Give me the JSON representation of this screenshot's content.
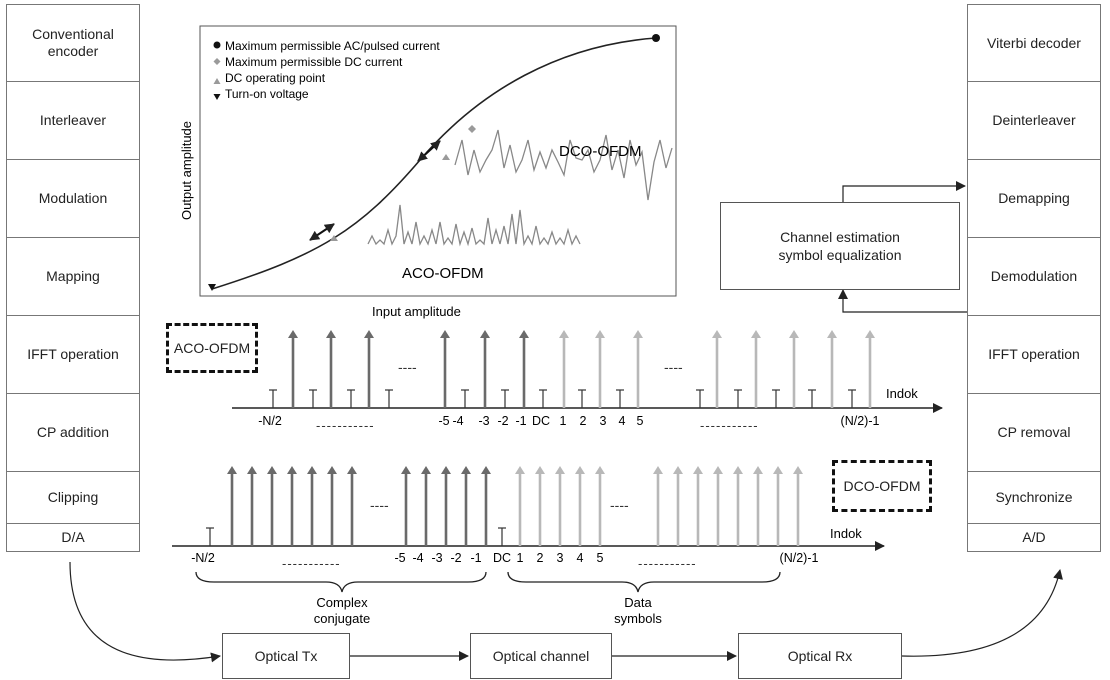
{
  "tx_chain": [
    "Conventional encoder",
    "Interleaver",
    "Modulation",
    "Mapping",
    "IFFT operation",
    "CP addition",
    "Clipping",
    "D/A"
  ],
  "rx_chain": [
    "Viterbi decoder",
    "Deinterleaver",
    "Demapping",
    "Demodulation",
    "IFFT operation",
    "CP removal",
    "Synchronize",
    "A/D"
  ],
  "channel_box": "Channel estimation\nsymbol equalization",
  "optical": {
    "tx": "Optical Tx",
    "channel": "Optical channel",
    "rx": "Optical Rx"
  },
  "inset": {
    "legend": [
      {
        "marker": "circle",
        "label": "Maximum permissible AC/pulsed current",
        "color": "#111111"
      },
      {
        "marker": "diamond",
        "label": "Maximum permissible DC current",
        "color": "#9a9a9a"
      },
      {
        "marker": "triangle-up",
        "label": "DC operating point",
        "color": "#9a9a9a"
      },
      {
        "marker": "triangle-down",
        "label": "Turn-on voltage",
        "color": "#111111"
      }
    ],
    "xlabel": "Input amplitude",
    "ylabel": "Output amplitude",
    "dco_label": "DCO-OFDM",
    "aco_label": "ACO-OFDM"
  },
  "aco": {
    "tag": "ACO-OFDM",
    "axis_label": "Indok",
    "ticks": [
      "-N/2",
      "-5",
      "-4",
      "-3",
      "-2",
      "-1",
      "DC",
      "1",
      "2",
      "3",
      "4",
      "5",
      "(N/2)-1"
    ],
    "ellipsis_short": "----",
    "ellipsis_long": "-----------"
  },
  "dco": {
    "tag": "DCO-OFDM",
    "axis_label": "Indok",
    "ticks": [
      "-N/2",
      "-5",
      "-4",
      "-3",
      "-2",
      "-1",
      "DC",
      "1",
      "2",
      "3",
      "4",
      "5",
      "(N/2)-1"
    ],
    "ellipsis_short": "----",
    "ellipsis_long": "-----------",
    "brace_left": "Complex\nconjugate",
    "brace_right": "Data\nsymbols"
  },
  "colors": {
    "dark_arrow": "#6a6a6a",
    "light_arrow": "#b8b8b8",
    "line": "#333333"
  }
}
